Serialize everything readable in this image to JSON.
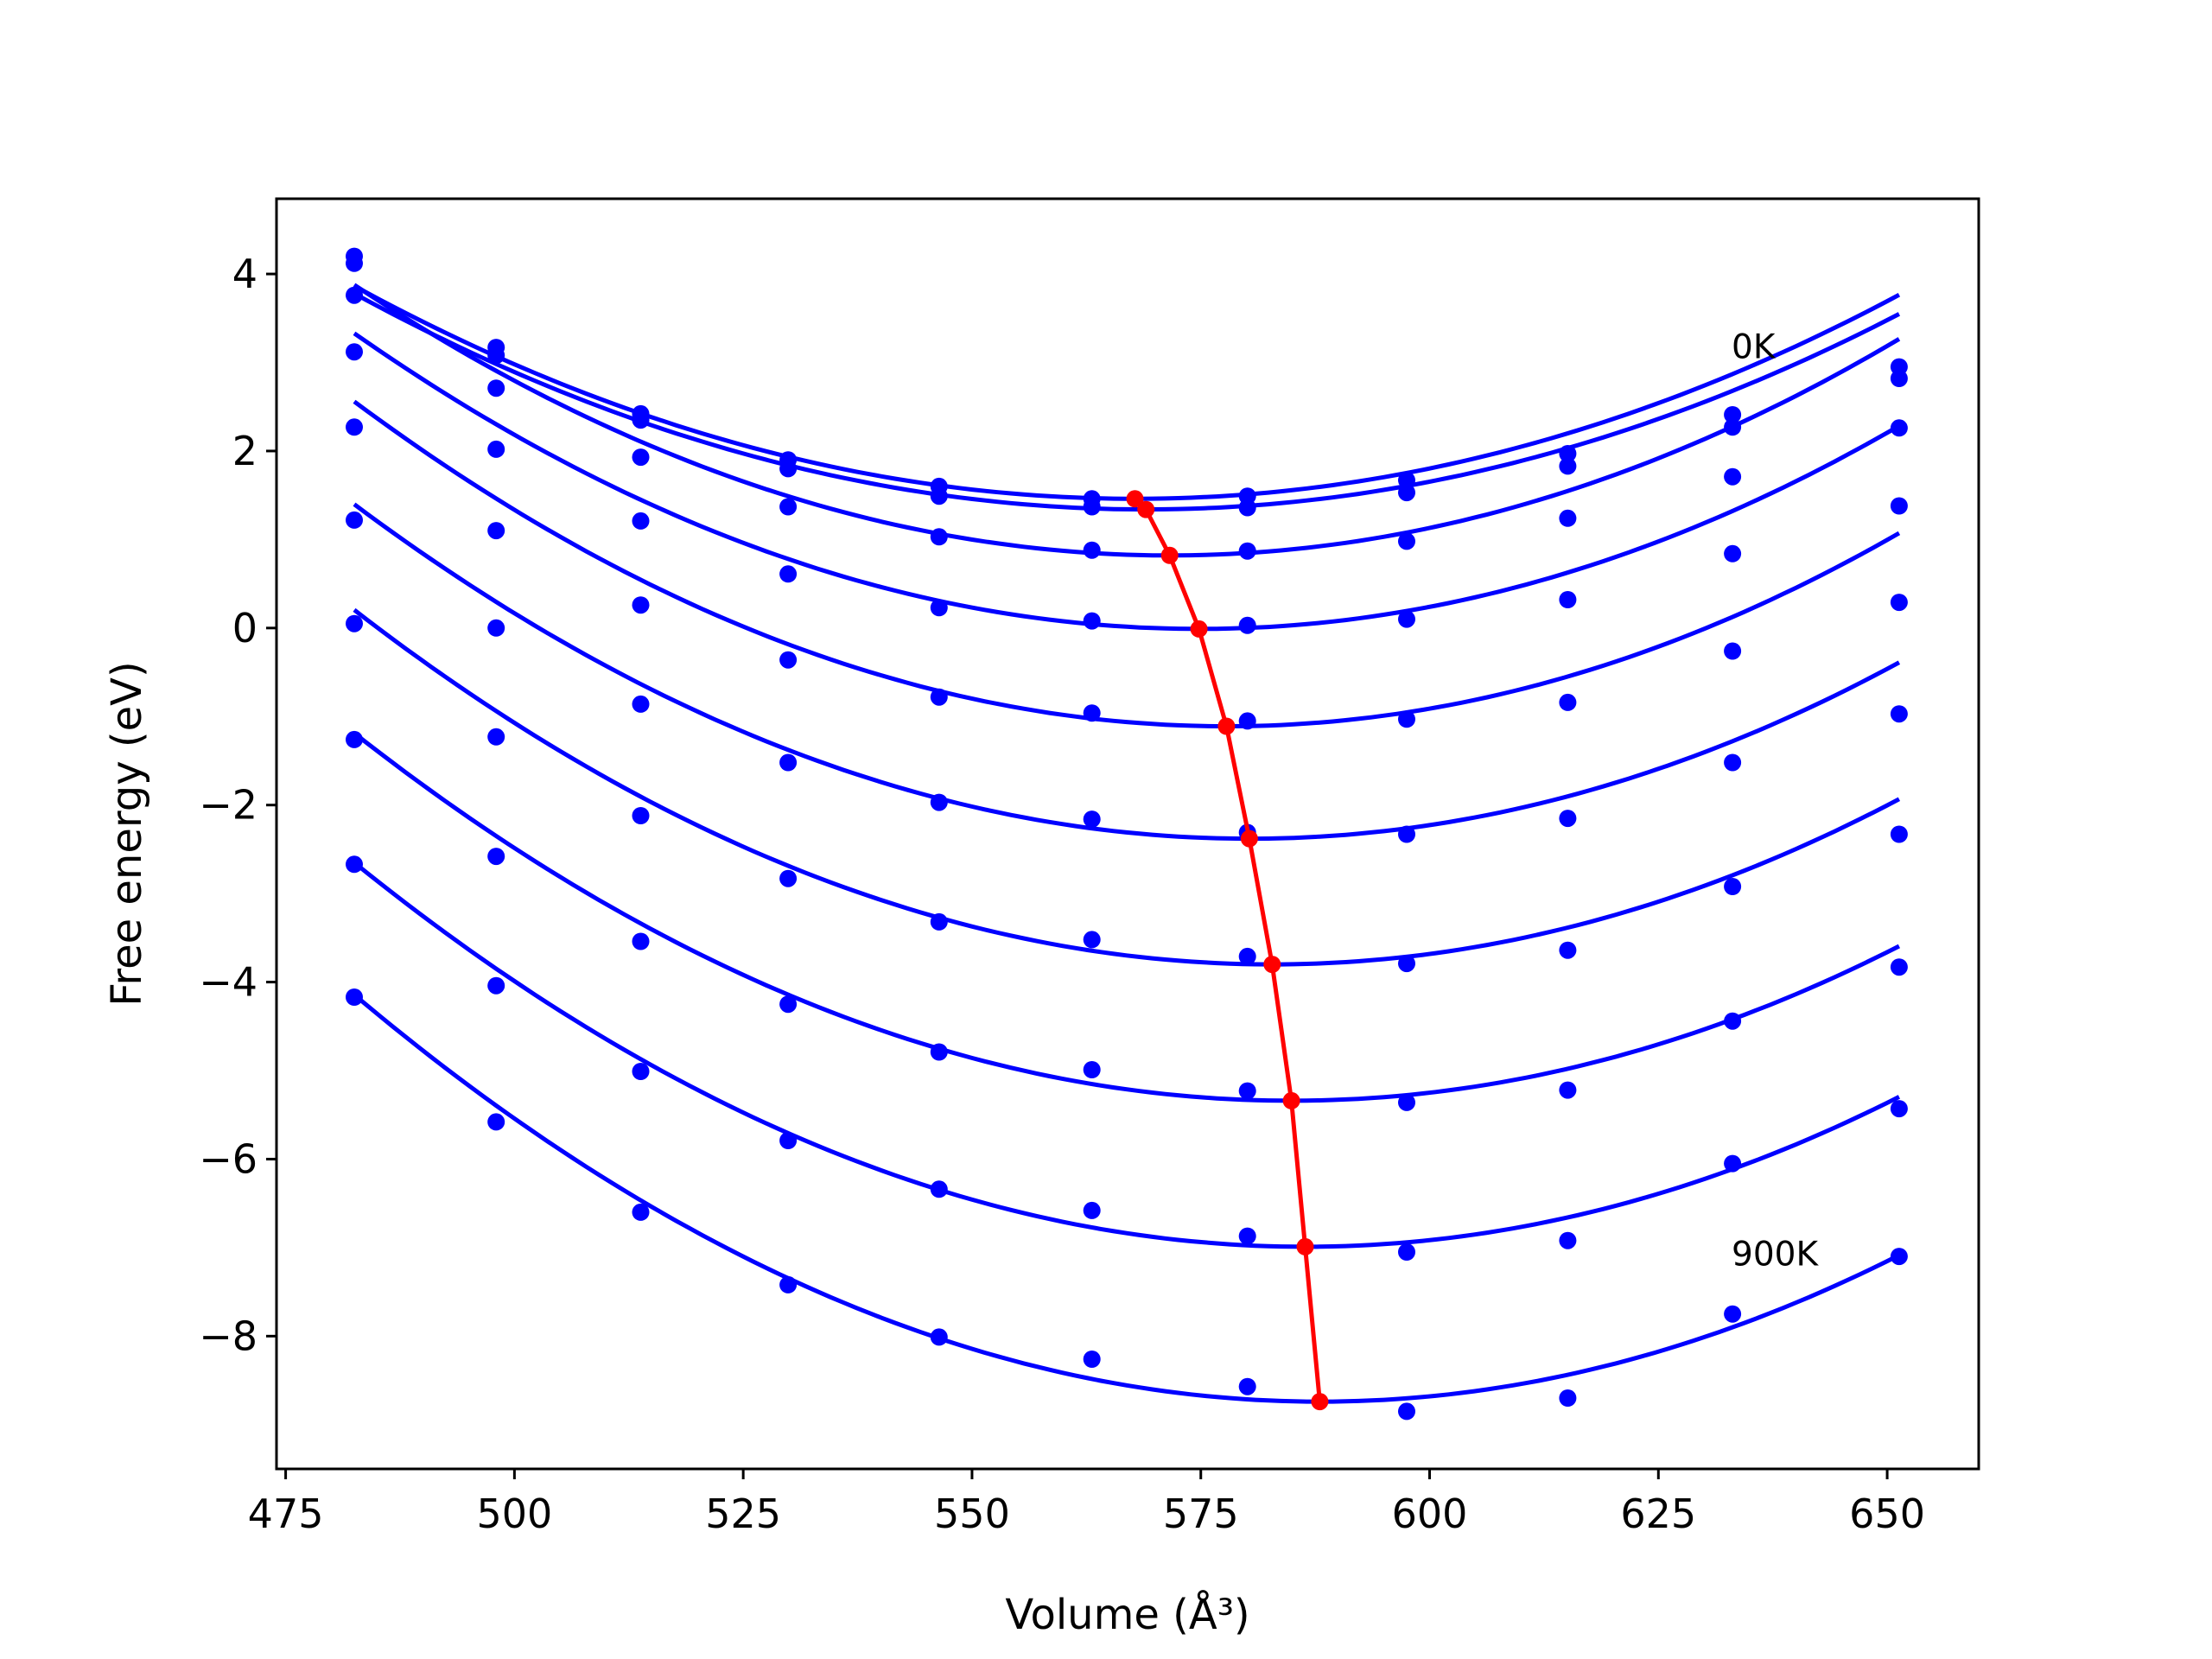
{
  "chart_data": {
    "type": "scatter",
    "xlabel": "Volume (Å³)",
    "ylabel": "Free energy (eV)",
    "xlim": [
      474,
      660
    ],
    "ylim": [
      -9.5,
      4.85
    ],
    "xticks": [
      475,
      500,
      525,
      550,
      575,
      600,
      625,
      650
    ],
    "yticks": [
      -8,
      -6,
      -4,
      -2,
      0,
      2,
      4
    ],
    "grid": false,
    "annotations": [
      {
        "text": "0K",
        "x": 633,
        "y": 3.05
      },
      {
        "text": "900K",
        "x": 633,
        "y": -7.2
      }
    ],
    "colors": {
      "fit": "#0000ff",
      "points": "#0000ff",
      "minimum": "#ff0000"
    },
    "volumes": [
      482.5,
      498,
      513.8,
      529.9,
      546.4,
      563.1,
      580.1,
      597.5,
      615.1,
      633.1,
      651.3
    ],
    "series": [
      {
        "points": [
          4.2,
          3.17,
          2.42,
          1.9,
          1.6,
          1.46,
          1.49,
          1.67,
          1.97,
          2.41,
          2.95
        ],
        "fit": {
          "a": 0.0003305,
          "vmin": 567.8,
          "emin": 1.46
        }
      },
      {
        "points": [
          4.12,
          3.08,
          2.35,
          1.8,
          1.49,
          1.37,
          1.36,
          1.53,
          1.83,
          2.27,
          2.82
        ],
        "fit": {
          "a": 0.000326,
          "vmin": 569,
          "emin": 1.34
        }
      },
      {
        "points": [
          3.76,
          2.71,
          1.93,
          1.37,
          1.03,
          0.88,
          0.87,
          0.98,
          1.24,
          1.71,
          2.26
        ],
        "fit": {
          "a": 0.000385,
          "vmin": 571.6,
          "emin": 0.82
        }
      },
      {
        "points": [
          3.12,
          2.02,
          1.21,
          0.61,
          0.23,
          0.08,
          0.03,
          0.1,
          0.32,
          0.84,
          1.38
        ],
        "fit": {
          "a": 0.000392,
          "vmin": 574.8,
          "emin": -0.01
        }
      },
      {
        "points": [
          2.27,
          1.1,
          0.26,
          -0.36,
          -0.78,
          -0.96,
          -1.05,
          -1.03,
          -0.84,
          -0.26,
          0.29
        ],
        "fit": {
          "a": 0.000404,
          "vmin": 577.8,
          "emin": -1.11
        }
      },
      {
        "points": [
          1.22,
          0.0,
          -0.86,
          -1.52,
          -1.97,
          -2.16,
          -2.31,
          -2.33,
          -2.15,
          -1.52,
          -0.97
        ],
        "fit": {
          "a": 0.000395,
          "vmin": 580.3,
          "emin": -2.38
        }
      },
      {
        "points": [
          0.05,
          -1.23,
          -2.12,
          -2.83,
          -3.32,
          -3.52,
          -3.71,
          -3.79,
          -3.64,
          -2.92,
          -2.33
        ],
        "fit": {
          "a": 0.000398,
          "vmin": 582.8,
          "emin": -3.8
        }
      },
      {
        "points": [
          -1.26,
          -2.58,
          -3.54,
          -4.25,
          -4.79,
          -4.99,
          -5.23,
          -5.36,
          -5.22,
          -4.44,
          -3.83
        ],
        "fit": {
          "a": 0.000396,
          "vmin": 584.9,
          "emin": -5.34
        }
      },
      {
        "points": [
          -2.67,
          -4.04,
          -5.01,
          -5.79,
          -6.34,
          -6.58,
          -6.87,
          -7.05,
          -6.92,
          -6.05,
          -5.43
        ],
        "fit": {
          "a": 0.000402,
          "vmin": 586.4,
          "emin": -6.99
        }
      },
      {
        "points": [
          -4.17,
          -5.58,
          -6.6,
          -7.42,
          -8.01,
          -8.26,
          -8.57,
          -8.85,
          -8.7,
          -7.75,
          -7.1
        ],
        "fit": {
          "a": 0.000413,
          "vmin": 588,
          "emin": -8.74
        }
      }
    ],
    "minimum_curve": {
      "x": [
        567.8,
        569,
        571.6,
        574.8,
        577.8,
        580.3,
        582.8,
        584.9,
        586.4,
        588
      ],
      "y": [
        1.46,
        1.34,
        0.82,
        -0.01,
        -1.11,
        -2.38,
        -3.8,
        -5.34,
        -6.99,
        -8.74
      ]
    }
  }
}
